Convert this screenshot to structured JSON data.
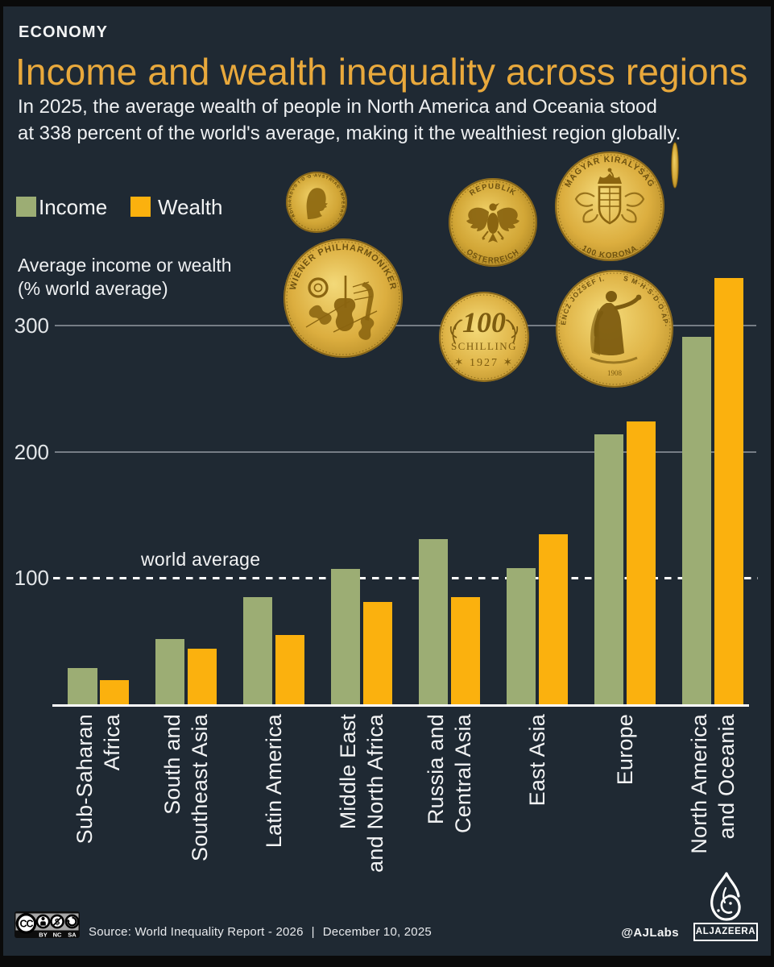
{
  "kicker": "ECONOMY",
  "title": "Income and wealth inequality across regions",
  "subtitle": "In 2025, the average wealth of people in North America and Oceania stood\nat 338 percent of the world's average, making it the wealthiest region globally.",
  "legend": {
    "income_label": "Income",
    "wealth_label": "Wealth"
  },
  "axis_title": "Average income or wealth\n(% world average)",
  "chart_data": {
    "type": "bar",
    "categories": [
      [
        "Sub-Saharan",
        "Africa"
      ],
      [
        "South and",
        "Southeast Asia"
      ],
      [
        "Latin America"
      ],
      [
        "Middle East",
        "and North Africa"
      ],
      [
        "Russia and",
        "Central Asia"
      ],
      [
        "East Asia"
      ],
      [
        "Europe"
      ],
      [
        "North America",
        "and Oceania"
      ]
    ],
    "series": [
      {
        "name": "Income",
        "color": "#9cad74",
        "values": [
          29,
          52,
          85,
          107,
          131,
          108,
          214,
          291
        ]
      },
      {
        "name": "Wealth",
        "color": "#fbb10e",
        "values": [
          19,
          44,
          55,
          81,
          85,
          135,
          224,
          338
        ]
      }
    ],
    "yticks": [
      100,
      200,
      300
    ],
    "ylim": [
      0,
      345
    ],
    "ylabel": "Average income or wealth (% world average)",
    "reference_line": {
      "value": 100,
      "label": "world average"
    },
    "grid": "horizontal",
    "legend_position": "top-left"
  },
  "coins": [
    "small-portrait-gold-coin",
    "wiener-philharmoniker-gold-coin",
    "republik-oesterreich-eagle-gold-coin",
    "100-schilling-1927-gold-coin",
    "magyar-kiralysag-100-korona-gold-coin",
    "ferencz-jozsef-standing-figure-gold-coin",
    "edge-on-coin-sliver"
  ],
  "coin_text": {
    "philharmoniker": "WIENER PHILHARMONIKER",
    "eagle_top": "REPUBLIK",
    "eagle_bottom": "OSTERREICH",
    "schilling_value": "100",
    "schilling_unit": "SCHILLING",
    "schilling_year": "✶ 1927 ✶",
    "korona_top": "MAGYAR KIRALYSAG",
    "korona_bottom": "100 KORONA",
    "ferencz_left": "FERENCZ JOZSEF I.K.A.",
    "ferencz_right": "CS·ES M·H·S·D·O·AP·KIR·",
    "ferencz_year": "1908",
    "portrait_rim": "FERDINANDVS I D G AVSTRIAE IMPERATOR"
  },
  "footer": {
    "license": "CC BY NC SA",
    "source": "Source: World Inequality Report - 2026",
    "separator": "|",
    "date": "December 10, 2025",
    "credit": "@AJLabs",
    "brand": "ALJAZEERA"
  },
  "colors": {
    "background": "#1f2933",
    "frame": "#0a0a0a",
    "title": "#e9a93c",
    "text": "#f2f3f4",
    "income_bar": "#9cad74",
    "wealth_bar": "#fbb10e",
    "gridline": "#767d86",
    "reference_line": "#ffffff"
  }
}
